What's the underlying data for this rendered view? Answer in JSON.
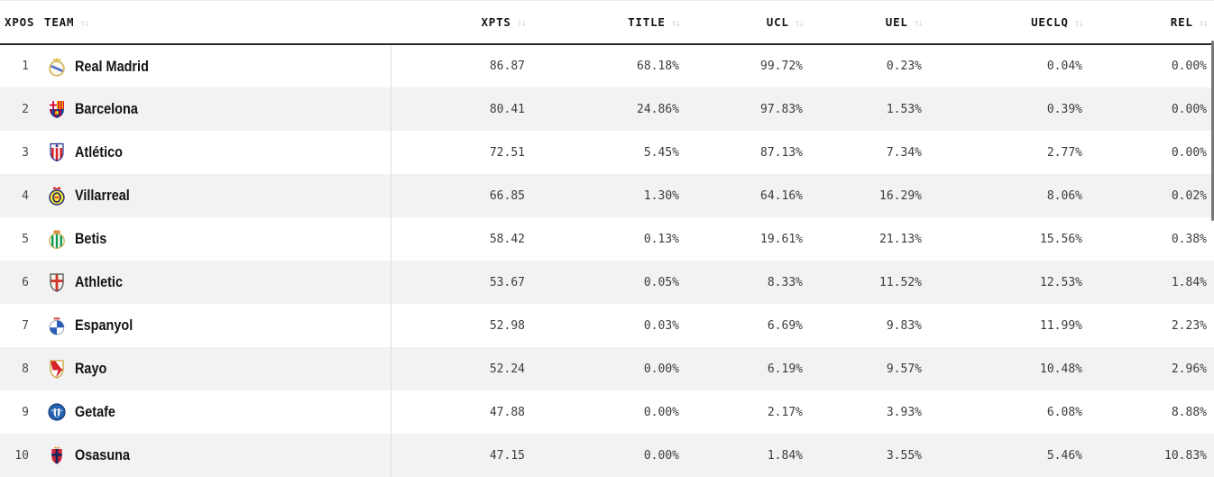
{
  "table": {
    "sort_icon": "↑↓",
    "columns": [
      {
        "key": "xpos",
        "label": "XPOS",
        "sortable": false,
        "align": "left"
      },
      {
        "key": "team",
        "label": "TEAM",
        "sortable": true,
        "align": "left"
      },
      {
        "key": "xpts",
        "label": "XPTS",
        "sortable": true,
        "align": "right"
      },
      {
        "key": "title",
        "label": "TITLE",
        "sortable": true,
        "align": "right"
      },
      {
        "key": "ucl",
        "label": "UCL",
        "sortable": true,
        "align": "right"
      },
      {
        "key": "uel",
        "label": "UEL",
        "sortable": true,
        "align": "right"
      },
      {
        "key": "ueclq",
        "label": "UECLQ",
        "sortable": true,
        "align": "right"
      },
      {
        "key": "rel",
        "label": "REL",
        "sortable": true,
        "align": "right"
      }
    ],
    "rows": [
      {
        "xpos": "1",
        "team": "Real Madrid",
        "crest": "real-madrid",
        "xpts": "86.87",
        "title": "68.18%",
        "ucl": "99.72%",
        "uel": "0.23%",
        "ueclq": "0.04%",
        "rel": "0.00%"
      },
      {
        "xpos": "2",
        "team": "Barcelona",
        "crest": "barcelona",
        "xpts": "80.41",
        "title": "24.86%",
        "ucl": "97.83%",
        "uel": "1.53%",
        "ueclq": "0.39%",
        "rel": "0.00%"
      },
      {
        "xpos": "3",
        "team": "Atlético",
        "crest": "atletico",
        "xpts": "72.51",
        "title": "5.45%",
        "ucl": "87.13%",
        "uel": "7.34%",
        "ueclq": "2.77%",
        "rel": "0.00%"
      },
      {
        "xpos": "4",
        "team": "Villarreal",
        "crest": "villarreal",
        "xpts": "66.85",
        "title": "1.30%",
        "ucl": "64.16%",
        "uel": "16.29%",
        "ueclq": "8.06%",
        "rel": "0.02%"
      },
      {
        "xpos": "5",
        "team": "Betis",
        "crest": "betis",
        "xpts": "58.42",
        "title": "0.13%",
        "ucl": "19.61%",
        "uel": "21.13%",
        "ueclq": "15.56%",
        "rel": "0.38%"
      },
      {
        "xpos": "6",
        "team": "Athletic",
        "crest": "athletic",
        "xpts": "53.67",
        "title": "0.05%",
        "ucl": "8.33%",
        "uel": "11.52%",
        "ueclq": "12.53%",
        "rel": "1.84%"
      },
      {
        "xpos": "7",
        "team": "Espanyol",
        "crest": "espanyol",
        "xpts": "52.98",
        "title": "0.03%",
        "ucl": "6.69%",
        "uel": "9.83%",
        "ueclq": "11.99%",
        "rel": "2.23%"
      },
      {
        "xpos": "8",
        "team": "Rayo",
        "crest": "rayo",
        "xpts": "52.24",
        "title": "0.00%",
        "ucl": "6.19%",
        "uel": "9.57%",
        "ueclq": "10.48%",
        "rel": "2.96%"
      },
      {
        "xpos": "9",
        "team": "Getafe",
        "crest": "getafe",
        "xpts": "47.88",
        "title": "0.00%",
        "ucl": "2.17%",
        "uel": "3.93%",
        "ueclq": "6.08%",
        "rel": "8.88%"
      },
      {
        "xpos": "10",
        "team": "Osasuna",
        "crest": "osasuna",
        "xpts": "47.15",
        "title": "0.00%",
        "ucl": "1.84%",
        "uel": "3.55%",
        "ueclq": "5.46%",
        "rel": "10.83%"
      }
    ]
  },
  "colors": {
    "row_stripe": "#f2f2f2",
    "header_border": "#2a2a2a",
    "column_divider": "#dcdcdc",
    "sort_icon": "#d7d7d7",
    "value_text": "#3c3c3c",
    "team_text": "#141414",
    "scrollbar": "#777777"
  }
}
